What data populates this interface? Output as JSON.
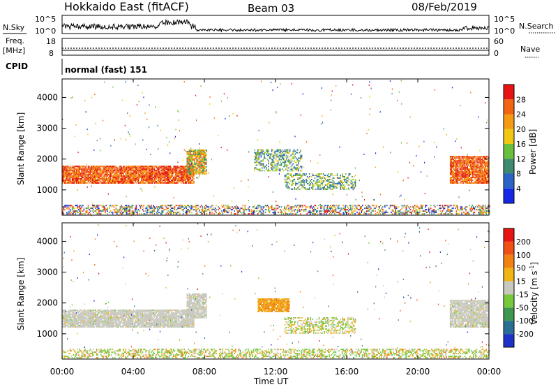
{
  "header": {
    "title": "Hokkaido East (fitACF)",
    "beam": "Beam 03",
    "date": "08/Feb/2019"
  },
  "summary_panels": {
    "nsky_label": "N.Sky",
    "nsky_ticks": [
      "10^5",
      "10^0"
    ],
    "nsearch_label": "N.Search",
    "nsearch_ticks": [
      "10^5",
      "10^0"
    ],
    "freq_label": [
      "Freq.",
      "[MHz]"
    ],
    "freq_ticks": [
      "18",
      "8"
    ],
    "nave_label": "Nave",
    "nave_ticks": [
      "60",
      "0"
    ],
    "cpid_label": "CPID",
    "cpid_text": "normal (fast) 151"
  },
  "x_axis": {
    "label": "Time UT",
    "ticks": [
      "00:00",
      "04:00",
      "08:00",
      "12:00",
      "16:00",
      "20:00",
      "00:00"
    ],
    "tick_hours": [
      0,
      4,
      8,
      12,
      16,
      20,
      24
    ],
    "range": [
      0,
      24
    ]
  },
  "chart_data": [
    {
      "type": "heatmap",
      "name": "power",
      "ylabel": "Slant Range [km]",
      "ylim": [
        180,
        4600
      ],
      "y_ticks": [
        1000,
        2000,
        3000,
        4000
      ],
      "colorbar": {
        "label": "Power [dB]",
        "ticks": [
          "4",
          "8",
          "12",
          "16",
          "20",
          "24",
          "28"
        ],
        "colors": [
          "#1428e6",
          "#2b64c6",
          "#3d8a6e",
          "#6abf3c",
          "#f0c814",
          "#f59a14",
          "#f06414",
          "#e61414"
        ]
      },
      "regions": [
        {
          "t0": 0.0,
          "t1": 7.4,
          "r0": 1200,
          "r1": 1780,
          "level": "high"
        },
        {
          "t0": 7.0,
          "t1": 8.1,
          "r0": 1500,
          "r1": 2300,
          "level": "medium"
        },
        {
          "t0": 10.8,
          "t1": 13.5,
          "r0": 1600,
          "r1": 2300,
          "level": "low"
        },
        {
          "t0": 12.5,
          "t1": 16.5,
          "r0": 1000,
          "r1": 1500,
          "level": "low"
        },
        {
          "t0": 0.0,
          "t1": 24.0,
          "r0": 200,
          "r1": 500,
          "level": "mixed"
        },
        {
          "t0": 21.8,
          "t1": 24.0,
          "r0": 1200,
          "r1": 2100,
          "level": "high"
        }
      ]
    },
    {
      "type": "heatmap",
      "name": "velocity",
      "ylabel": "Slant Range [km]",
      "ylim": [
        180,
        4600
      ],
      "y_ticks": [
        1000,
        2000,
        3000,
        4000
      ],
      "colorbar": {
        "label": "Velocity [m s^-1]",
        "ticks": [
          "200",
          "100",
          "50",
          "15",
          "-15",
          "-50",
          "-100",
          "-200"
        ],
        "colors": [
          "#1e32c8",
          "#2a6e96",
          "#3c9650",
          "#78c83c",
          "#c8c8be",
          "#f0b414",
          "#f08214",
          "#f05014",
          "#e61414"
        ]
      },
      "regions": [
        {
          "t0": 0.0,
          "t1": 7.4,
          "r0": 1200,
          "r1": 1780,
          "level": "grey"
        },
        {
          "t0": 7.0,
          "t1": 8.1,
          "r0": 1500,
          "r1": 2300,
          "level": "grey"
        },
        {
          "t0": 11.0,
          "t1": 12.8,
          "r0": 1700,
          "r1": 2150,
          "level": "orange"
        },
        {
          "t0": 12.5,
          "t1": 16.5,
          "r0": 1000,
          "r1": 1500,
          "level": "mixed"
        },
        {
          "t0": 0.0,
          "t1": 24.0,
          "r0": 200,
          "r1": 500,
          "level": "mixed-low"
        },
        {
          "t0": 21.8,
          "t1": 24.0,
          "r0": 1200,
          "r1": 2100,
          "level": "grey"
        }
      ]
    }
  ]
}
